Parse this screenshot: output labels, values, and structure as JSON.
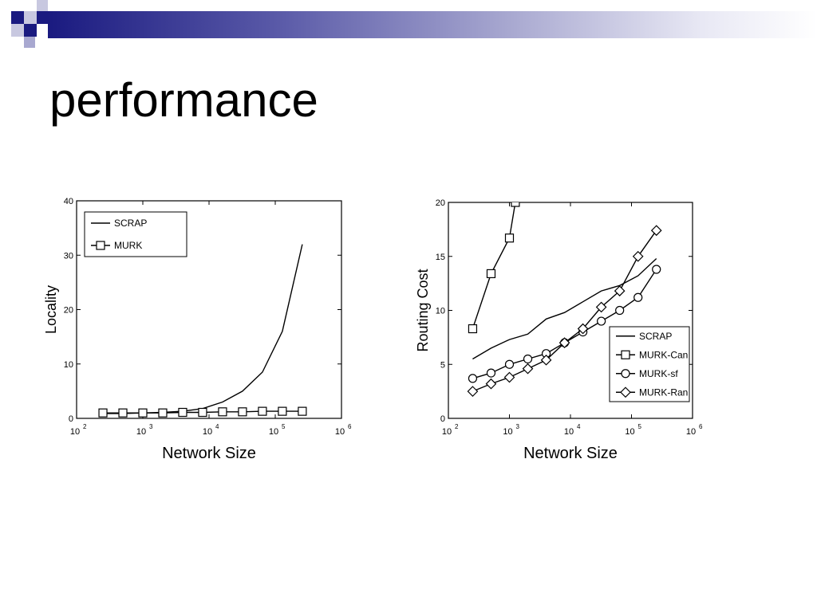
{
  "slide": {
    "title": "performance",
    "accent_dark": "#1a1a80",
    "accent_light": "#a8a8d0"
  },
  "chart_data": [
    {
      "type": "line",
      "xlabel": "Network Size",
      "ylabel": "Locality",
      "x_scale": "log",
      "xlim": [
        100,
        1000000
      ],
      "ylim": [
        0,
        40
      ],
      "x_ticks": [
        100,
        1000,
        10000,
        100000,
        1000000
      ],
      "x_tick_labels": [
        "10",
        "10",
        "10",
        "10",
        "10"
      ],
      "x_tick_exponents": [
        "2",
        "3",
        "4",
        "5",
        "6"
      ],
      "y_ticks": [
        0,
        10,
        20,
        30,
        40
      ],
      "y_tick_labels": [
        "0",
        "10",
        "20",
        "30",
        "40"
      ],
      "legend": {
        "placement": "top-left"
      },
      "series": [
        {
          "name": "SCRAP",
          "marker": "none",
          "x": [
            250,
            500,
            1000,
            2000,
            4000,
            8000,
            16000,
            32000,
            64000,
            128000,
            256000
          ],
          "y": [
            0.9,
            0.9,
            1.0,
            1.1,
            1.3,
            1.8,
            3.0,
            5.0,
            8.5,
            16.0,
            32.0
          ]
        },
        {
          "name": "MURK",
          "marker": "square",
          "x": [
            250,
            500,
            1000,
            2000,
            4000,
            8000,
            16000,
            32000,
            64000,
            128000,
            256000
          ],
          "y": [
            1.0,
            1.0,
            1.0,
            1.0,
            1.1,
            1.1,
            1.2,
            1.2,
            1.3,
            1.3,
            1.3
          ]
        }
      ]
    },
    {
      "type": "line",
      "xlabel": "Network Size",
      "ylabel": "Routing Cost",
      "x_scale": "log",
      "xlim": [
        100,
        1000000
      ],
      "ylim": [
        0,
        20
      ],
      "x_ticks": [
        100,
        1000,
        10000,
        100000,
        1000000
      ],
      "x_tick_labels": [
        "10",
        "10",
        "10",
        "10",
        "10"
      ],
      "x_tick_exponents": [
        "2",
        "3",
        "4",
        "5",
        "6"
      ],
      "y_ticks": [
        0,
        5,
        10,
        15,
        20
      ],
      "y_tick_labels": [
        "0",
        "5",
        "10",
        "15",
        "20"
      ],
      "legend": {
        "placement": "bottom-right"
      },
      "series": [
        {
          "name": "SCRAP",
          "marker": "none",
          "x": [
            250,
            500,
            1000,
            2000,
            4000,
            8000,
            16000,
            32000,
            64000,
            128000,
            256000
          ],
          "y": [
            5.5,
            6.5,
            7.3,
            7.8,
            9.2,
            9.8,
            10.8,
            11.8,
            12.3,
            13.2,
            14.8
          ]
        },
        {
          "name": "MURK-Can",
          "marker": "square",
          "x": [
            250,
            500,
            1000,
            1250
          ],
          "y": [
            8.3,
            13.4,
            16.7,
            20.0
          ]
        },
        {
          "name": "MURK-sf",
          "marker": "circle",
          "x": [
            250,
            500,
            1000,
            2000,
            4000,
            8000,
            16000,
            32000,
            64000,
            128000,
            256000
          ],
          "y": [
            3.7,
            4.2,
            5.0,
            5.5,
            6.0,
            7.0,
            8.0,
            9.0,
            10.0,
            11.2,
            13.8
          ]
        },
        {
          "name": "MURK-Ran",
          "marker": "diamond",
          "x": [
            250,
            500,
            1000,
            2000,
            4000,
            8000,
            16000,
            32000,
            64000,
            128000,
            256000
          ],
          "y": [
            2.5,
            3.2,
            3.8,
            4.6,
            5.4,
            7.0,
            8.3,
            10.3,
            11.8,
            15.0,
            17.4
          ]
        }
      ]
    }
  ]
}
